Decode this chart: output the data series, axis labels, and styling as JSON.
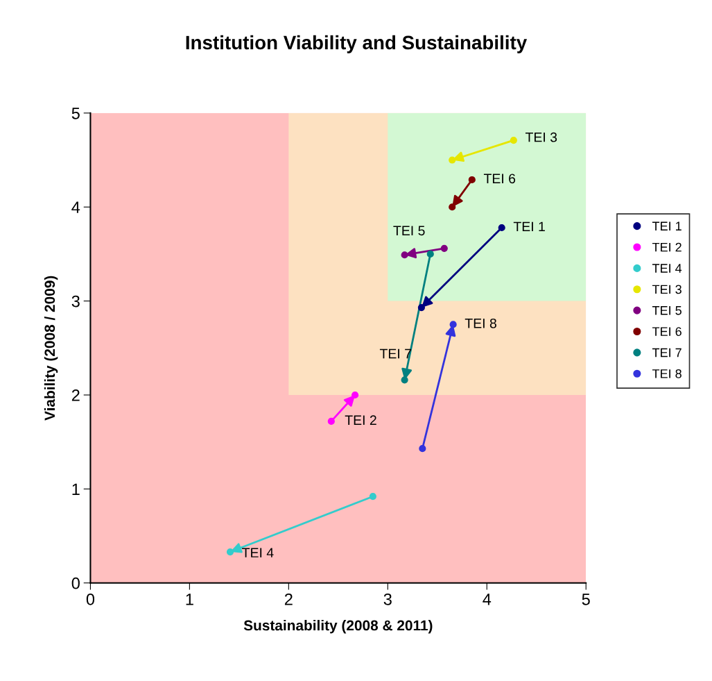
{
  "chart_data": {
    "type": "line",
    "title": "Institution Viability and Sustainability",
    "xlabel": "Sustainability (2008 & 2011)",
    "ylabel": "Viability (2008 / 2009)",
    "xlim": [
      0,
      5
    ],
    "xticks": [
      0,
      1,
      2,
      3,
      4,
      5
    ],
    "ylim": [
      0,
      5
    ],
    "yticks": [
      0,
      1,
      2,
      3,
      4,
      5
    ],
    "grid": false,
    "legend": "right",
    "marker": "circle",
    "line_style": "solid",
    "series": [
      {
        "name": "TEI 1",
        "color": "#000080",
        "x": [
          4.15,
          3.34
        ],
        "values": [
          3.78,
          2.93
        ]
      },
      {
        "name": "TEI 2",
        "color": "#ff00ff",
        "x": [
          2.43,
          2.67
        ],
        "values": [
          1.72,
          2.0
        ]
      },
      {
        "name": "TEI 4",
        "color": "#33cccc",
        "x": [
          2.85,
          1.41
        ],
        "values": [
          0.92,
          0.33
        ]
      },
      {
        "name": "TEI 3",
        "color": "#e6e600",
        "x": [
          4.27,
          3.65
        ],
        "values": [
          4.71,
          4.5
        ]
      },
      {
        "name": "TEI 5",
        "color": "#800080",
        "x": [
          3.57,
          3.17
        ],
        "values": [
          3.56,
          3.49
        ]
      },
      {
        "name": "TEI 6",
        "color": "#800000",
        "x": [
          3.85,
          3.65
        ],
        "values": [
          4.29,
          4.0
        ]
      },
      {
        "name": "TEI 7",
        "color": "#008080",
        "x": [
          3.43,
          3.17
        ],
        "values": [
          3.5,
          2.16
        ]
      },
      {
        "name": "TEI 8",
        "color": "#3333dd",
        "x": [
          3.35,
          3.66
        ],
        "values": [
          1.43,
          2.75
        ]
      }
    ],
    "annotations": [
      {
        "text": "TEI 1",
        "x": 4.15,
        "y": 3.78
      },
      {
        "text": "TEI 2",
        "x": 2.43,
        "y": 1.72
      },
      {
        "text": "TEI 4",
        "x": 1.41,
        "y": 0.33
      },
      {
        "text": "TEI 3",
        "x": 4.27,
        "y": 4.71
      },
      {
        "text": "TEI 5",
        "x": 3.17,
        "y": 3.49
      },
      {
        "text": "TEI 6",
        "x": 3.85,
        "y": 4.29
      },
      {
        "text": "TEI 7",
        "x": 3.17,
        "y": 2.16
      },
      {
        "text": "TEI 8",
        "x": 3.66,
        "y": 2.75
      }
    ]
  }
}
